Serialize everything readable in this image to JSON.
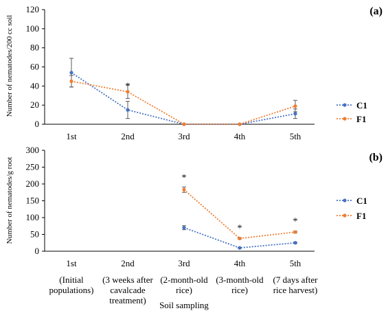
{
  "chart_data": [
    {
      "panel_label": "(a)",
      "type": "line",
      "categories": [
        "1st",
        "2nd",
        "3rd",
        "4th",
        "5th"
      ],
      "ylabel": "Number of nematodes/200 cc soil",
      "ylim": [
        0,
        120
      ],
      "yticks": [
        0,
        20,
        40,
        60,
        80,
        100,
        120
      ],
      "series": [
        {
          "name": "C1",
          "color": "#4472C4",
          "values": [
            54,
            15,
            0,
            0,
            11
          ],
          "errors": [
            15,
            9,
            0,
            0,
            5
          ]
        },
        {
          "name": "F1",
          "color": "#ED7D31",
          "values": [
            45,
            34,
            0,
            0,
            19
          ],
          "errors": [
            6,
            7,
            0,
            0,
            6
          ]
        }
      ],
      "annotations": [
        {
          "category_index": 1,
          "value": 42,
          "text": "*"
        }
      ],
      "legend_position": "right"
    },
    {
      "panel_label": "(b)",
      "type": "line",
      "categories": [
        "1st",
        "2nd",
        "3rd",
        "4th",
        "5th"
      ],
      "category_sublabels": [
        [
          "(Initial",
          "populations)"
        ],
        [
          "(3 weeks after",
          "cavalcade",
          "treatment)"
        ],
        [
          "(2-month-old",
          "rice)"
        ],
        [
          "(3-month-old",
          "rice)"
        ],
        [
          "(7 days after",
          "rice harvest)"
        ]
      ],
      "xlabel": "Soil sampling",
      "ylabel": "Number of nematodes/g root",
      "ylim": [
        0,
        300
      ],
      "yticks": [
        0,
        50,
        100,
        150,
        200,
        250,
        300
      ],
      "series": [
        {
          "name": "C1",
          "color": "#4472C4",
          "values": [
            null,
            null,
            70,
            10,
            25
          ],
          "errors": [
            0,
            0,
            6,
            1,
            2
          ]
        },
        {
          "name": "F1",
          "color": "#ED7D31",
          "values": [
            null,
            null,
            183,
            38,
            57
          ],
          "errors": [
            0,
            0,
            8,
            2,
            3
          ]
        }
      ],
      "annotations": [
        {
          "category_index": 2,
          "value": 225,
          "text": "*"
        },
        {
          "category_index": 3,
          "value": 75,
          "text": "*"
        },
        {
          "category_index": 4,
          "value": 95,
          "text": "*"
        }
      ],
      "legend_position": "right"
    }
  ]
}
